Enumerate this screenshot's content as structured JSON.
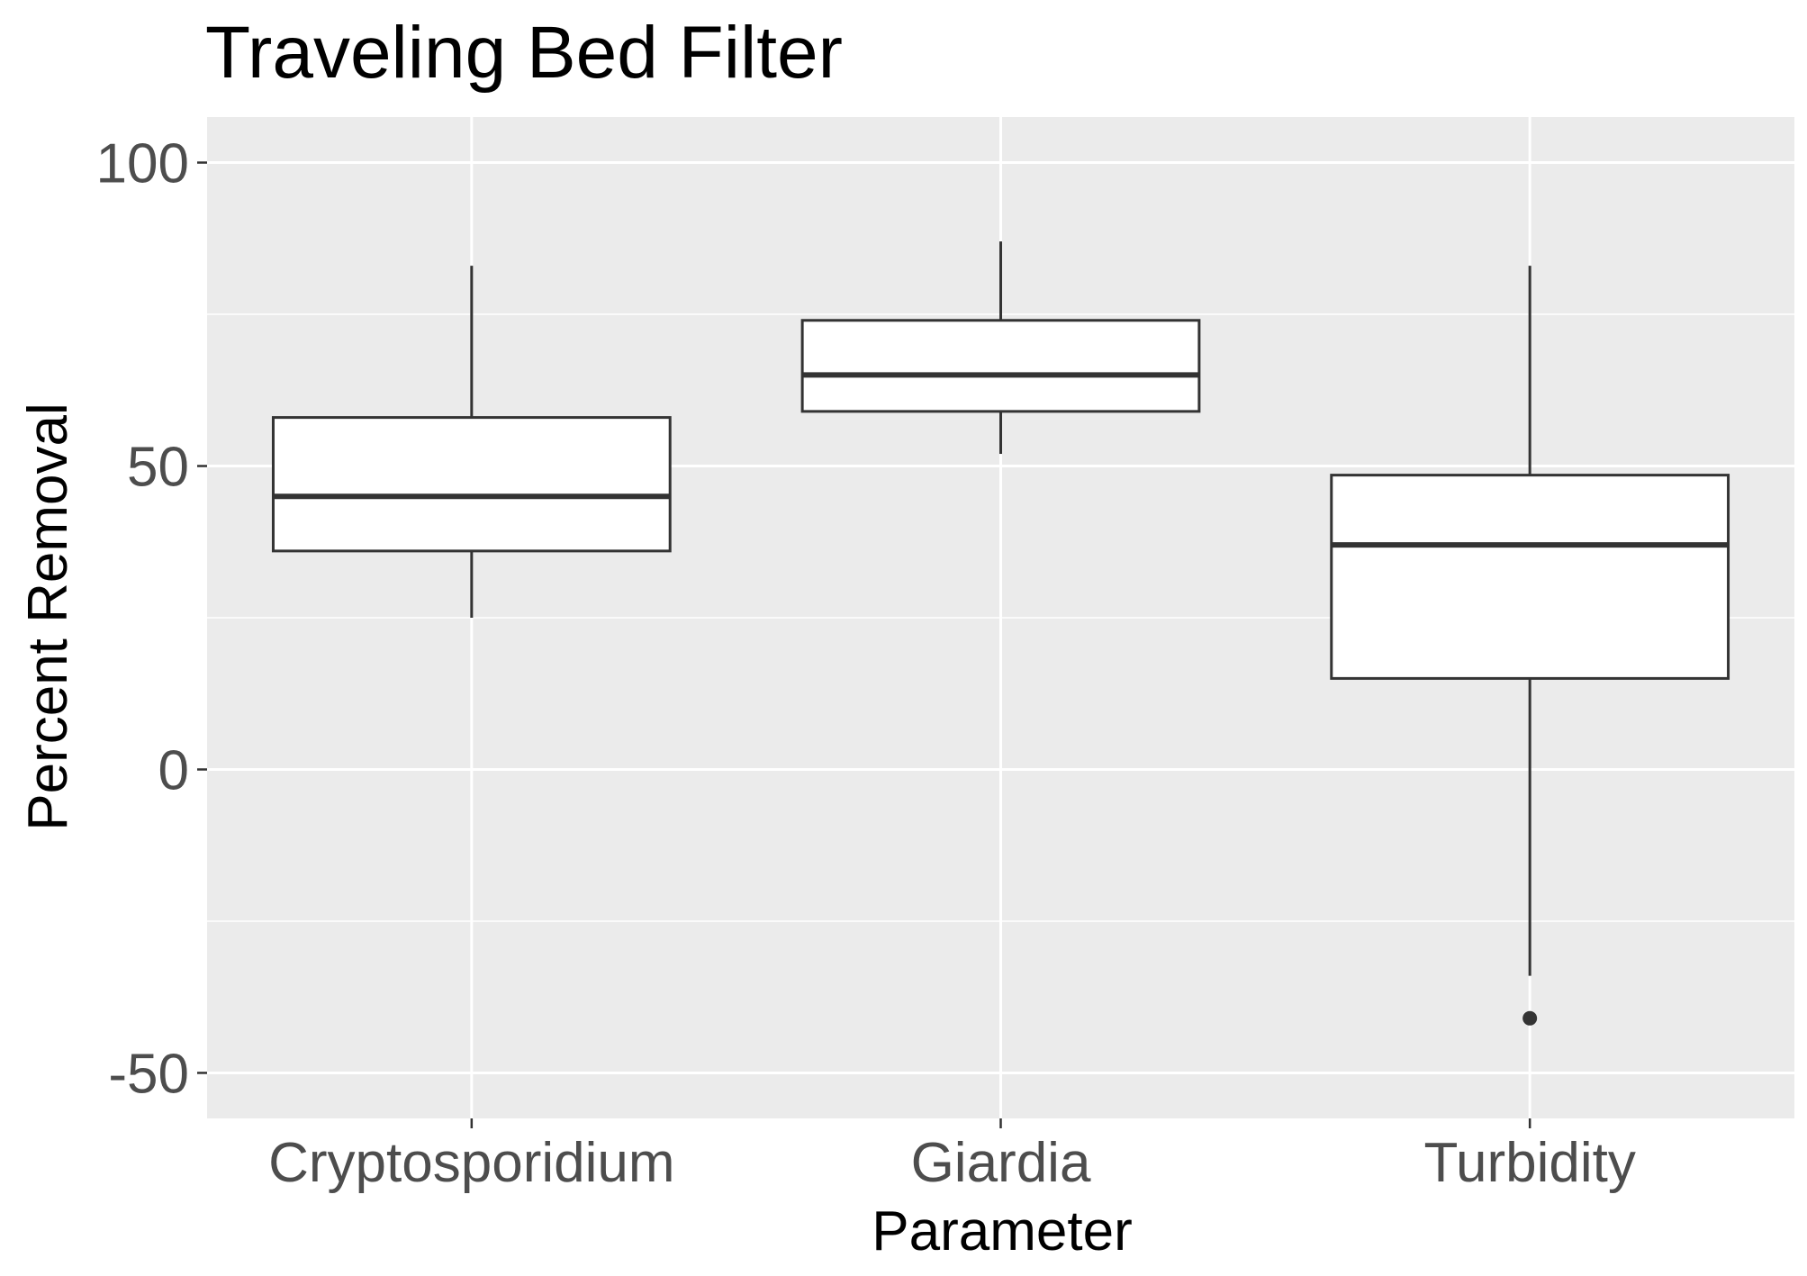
{
  "chart_data": {
    "type": "boxplot",
    "title": "Traveling Bed Filter",
    "xlabel": "Parameter",
    "ylabel": "Percent Removal",
    "categories": [
      "Cryptosporidium",
      "Giardia",
      "Turbidity"
    ],
    "boxes": [
      {
        "category": "Cryptosporidium",
        "whisker_low": 25,
        "q1": 36,
        "median": 45,
        "q3": 58,
        "whisker_high": 83,
        "outliers": []
      },
      {
        "category": "Giardia",
        "whisker_low": 52,
        "q1": 59,
        "median": 65,
        "q3": 74,
        "whisker_high": 87,
        "outliers": []
      },
      {
        "category": "Turbidity",
        "whisker_low": -34,
        "q1": 15,
        "median": 37,
        "q3": 48.5,
        "whisker_high": 83,
        "outliers": [
          -41
        ]
      }
    ],
    "ylim": [
      -57.5,
      107.5
    ],
    "y_ticks": [
      -50,
      0,
      50,
      100
    ],
    "y_tick_labels": [
      "-50",
      "0",
      "50",
      "100"
    ],
    "y_minor_ticks": [
      -25,
      25,
      75
    ],
    "grid": true,
    "legend": "none",
    "colors": {
      "panel_background": "#ebebeb",
      "grid_line": "#ffffff",
      "box_fill": "#ffffff",
      "box_stroke": "#333333",
      "tick_text": "#4d4d4d",
      "label_text": "#000000"
    }
  }
}
